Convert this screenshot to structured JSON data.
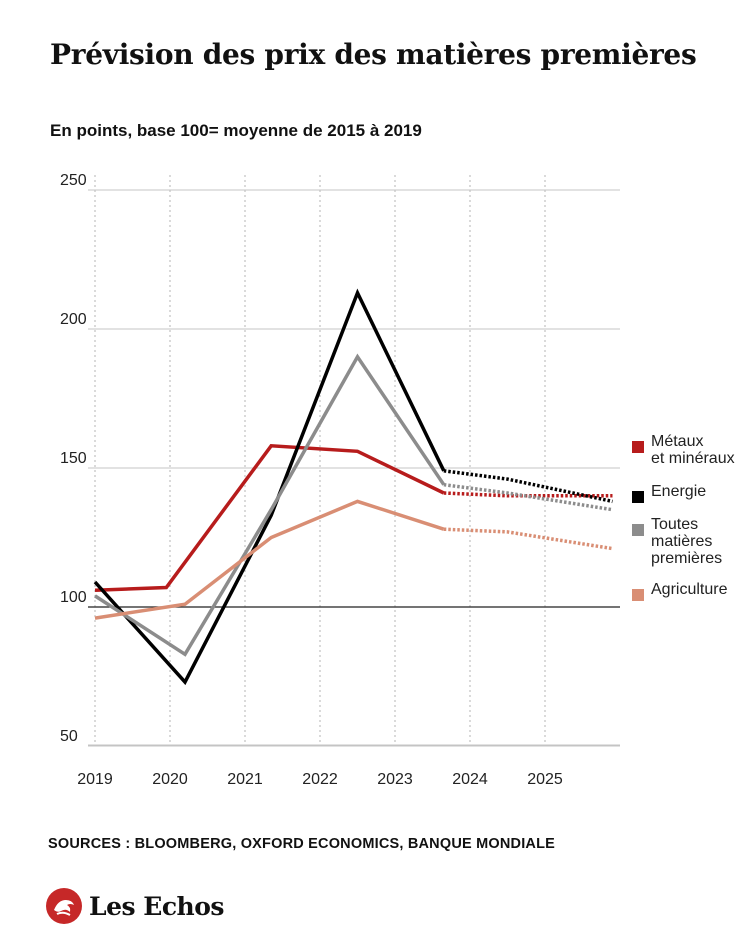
{
  "page": {
    "title": "Prévision des prix des matières premières",
    "subtitle": "En points, base 100= moyenne de 2015 à 2019",
    "sources": "SOURCES : BLOOMBERG, OXFORD ECONOMICS, BANQUE MONDIALE",
    "brand": "Les Echos"
  },
  "chart_data": {
    "type": "line",
    "title": "Prévision des prix des matières premières",
    "subtitle": "En points, base 100= moyenne de 2015 à 2019",
    "xlabel": "",
    "ylabel": "",
    "x_ticks": [
      "2019",
      "2020",
      "2021",
      "2022",
      "2023",
      "2024",
      "2025"
    ],
    "y_ticks": [
      50,
      100,
      150,
      200,
      250
    ],
    "xlim": [
      2019,
      2025.9
    ],
    "ylim": [
      45,
      250
    ],
    "baseline": 100,
    "grid": "vertical dotted, horizontal solid",
    "legend_position": "right",
    "forecast_start": 2023.65,
    "series": [
      {
        "name": "Métaux et minéraux",
        "color": "#b71c1c",
        "points": [
          [
            2019,
            106
          ],
          [
            2019.95,
            107
          ],
          [
            2021.35,
            158
          ],
          [
            2022.5,
            156
          ],
          [
            2023.65,
            141
          ],
          [
            2024.5,
            140
          ],
          [
            2025.9,
            140
          ]
        ]
      },
      {
        "name": "Energie",
        "color": "#000000",
        "points": [
          [
            2019,
            109
          ],
          [
            2020.2,
            73
          ],
          [
            2021.35,
            133
          ],
          [
            2022.5,
            213
          ],
          [
            2023.65,
            149
          ],
          [
            2024.5,
            146
          ],
          [
            2025.9,
            138
          ]
        ]
      },
      {
        "name": "Toutes matières premières",
        "color": "#8c8c8c",
        "points": [
          [
            2019,
            104
          ],
          [
            2020.2,
            83
          ],
          [
            2021.35,
            135
          ],
          [
            2022.5,
            190
          ],
          [
            2023.65,
            144
          ],
          [
            2024.5,
            141
          ],
          [
            2025.9,
            135
          ]
        ]
      },
      {
        "name": "Agriculture",
        "color": "#d98e74",
        "points": [
          [
            2019,
            96
          ],
          [
            2020.2,
            101
          ],
          [
            2021.35,
            125
          ],
          [
            2022.5,
            138
          ],
          [
            2023.65,
            128
          ],
          [
            2024.5,
            127
          ],
          [
            2025.9,
            121
          ]
        ]
      }
    ]
  },
  "legend": [
    {
      "label": "Métaux\net minéraux",
      "color": "#b71c1c"
    },
    {
      "label": "Energie",
      "color": "#000000"
    },
    {
      "label": "Toutes\nmatières\npremières",
      "color": "#8c8c8c"
    },
    {
      "label": "Agriculture",
      "color": "#d98e74"
    }
  ]
}
